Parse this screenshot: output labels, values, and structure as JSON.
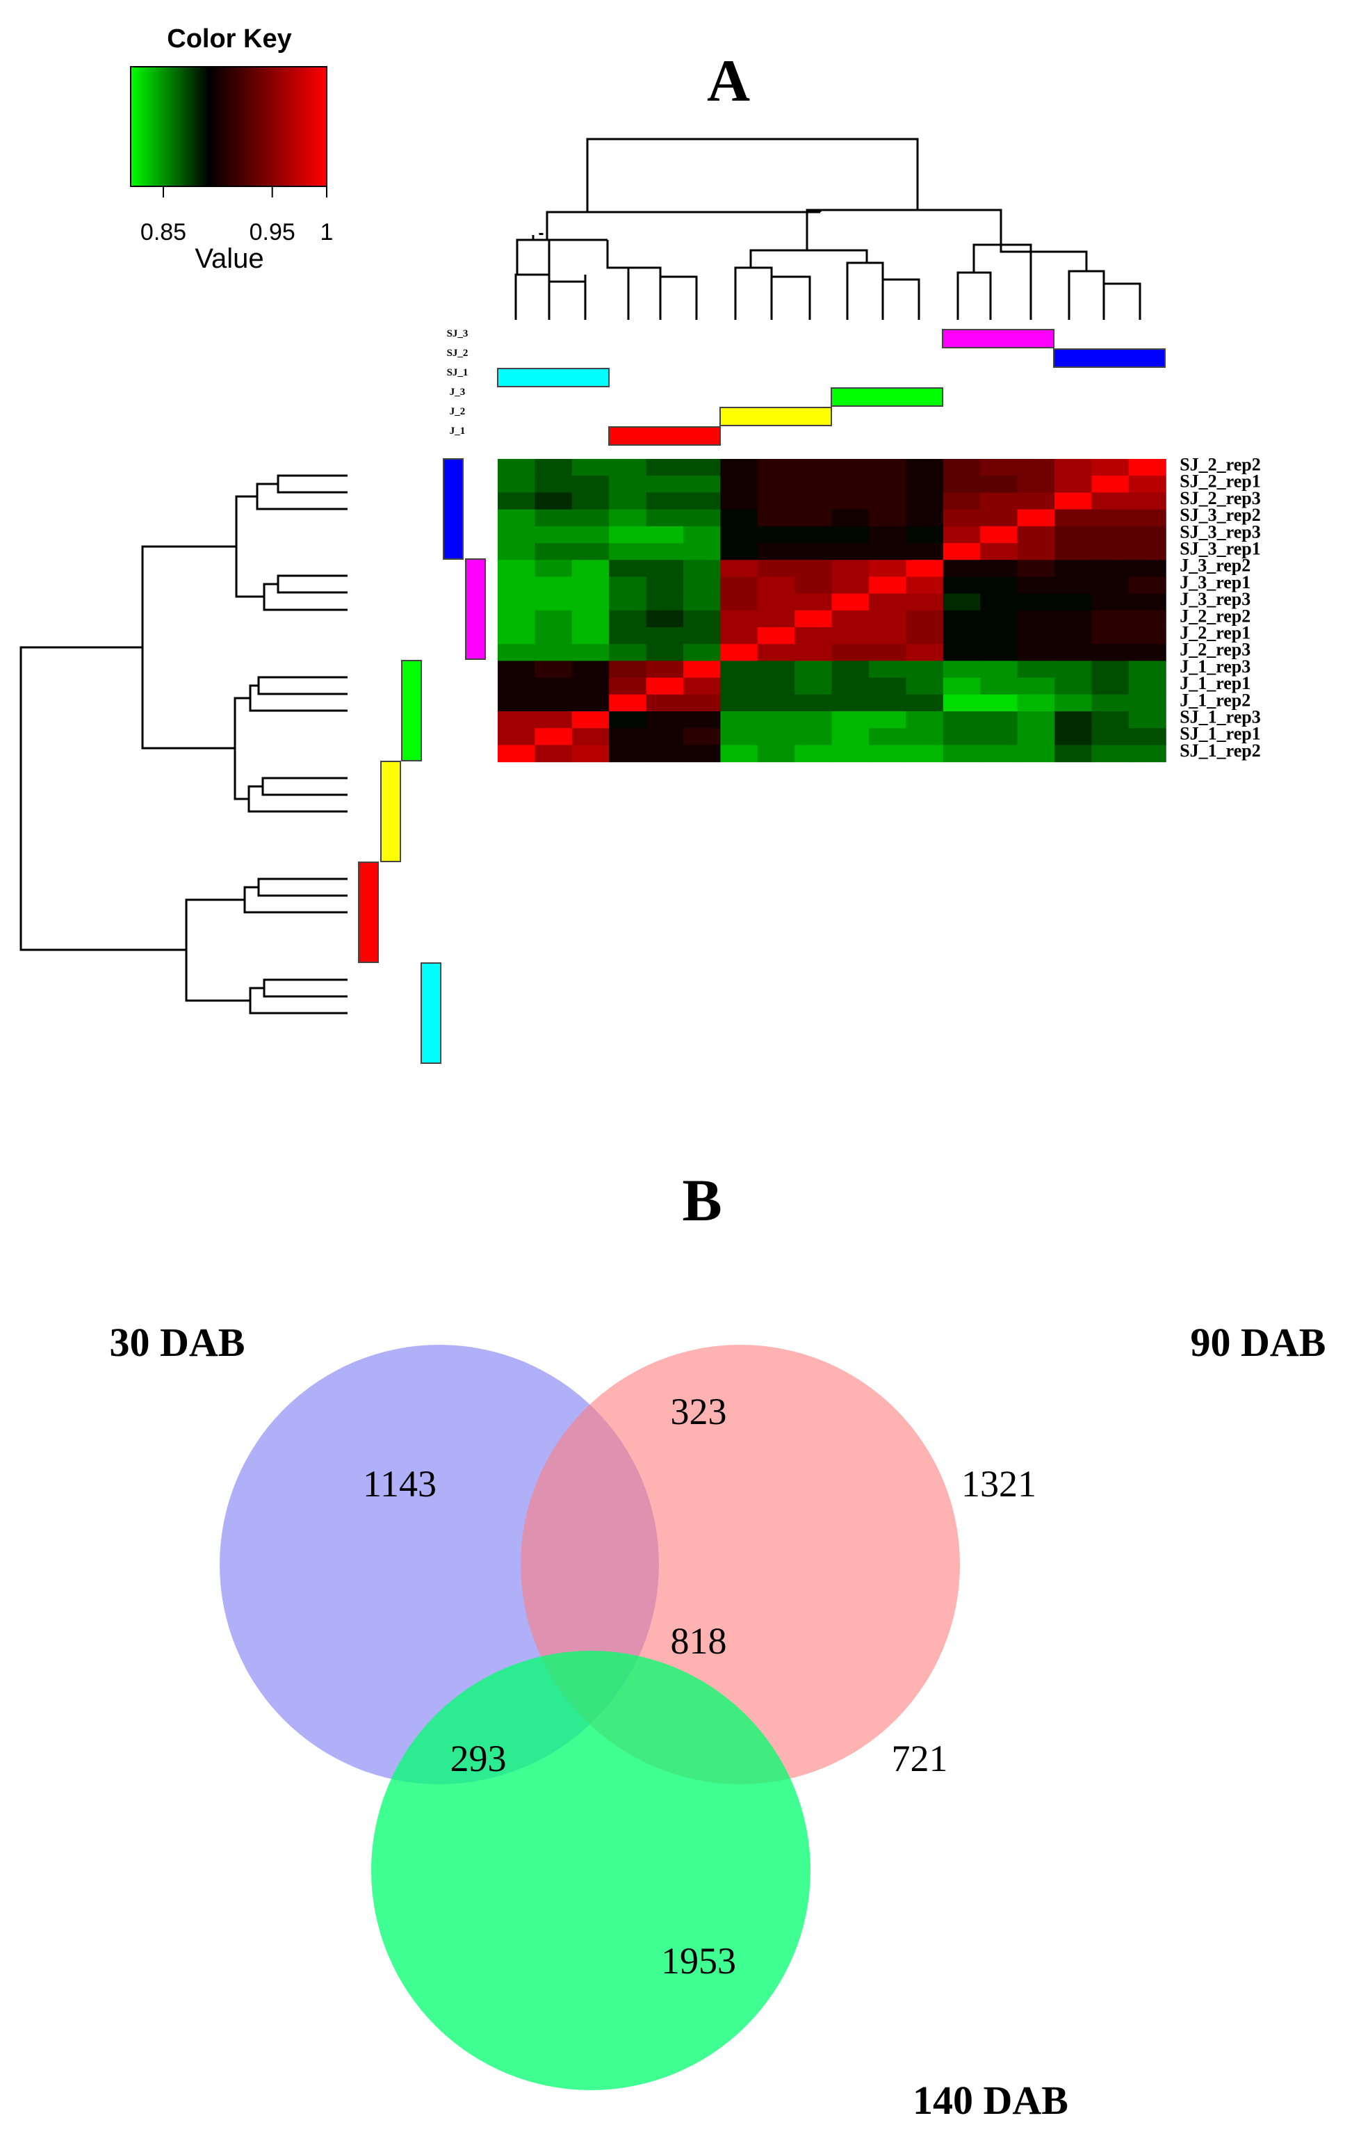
{
  "chart_data": [
    {
      "type": "heatmap",
      "title": "A",
      "color_key": {
        "title": "Color Key",
        "label": "Value",
        "ticks": [
          "0.85",
          "0.95",
          "1"
        ],
        "range": [
          0.82,
          1.0
        ],
        "low_color": "#00ff00",
        "mid_color": "#000000",
        "high_color": "#ff0000"
      },
      "rows": [
        "SJ_2_rep2",
        "SJ_2_rep1",
        "SJ_2_rep3",
        "SJ_3_rep2",
        "SJ_3_rep3",
        "SJ_3_rep1",
        "J_3_rep2",
        "J_3_rep1",
        "J_3_rep3",
        "J_2_rep2",
        "J_2_rep1",
        "J_2_rep3",
        "J_1_rep3",
        "J_1_rep1",
        "J_1_rep2",
        "SJ_1_rep3",
        "SJ_1_rep1",
        "SJ_1_rep2"
      ],
      "group_labels": [
        "SJ_3",
        "SJ_2",
        "SJ_1",
        "J_3",
        "J_2",
        "J_1"
      ],
      "groups": [
        {
          "name": "SJ_2",
          "color": "#0000ff"
        },
        {
          "name": "SJ_3",
          "color": "#ff00ff"
        },
        {
          "name": "J_3",
          "color": "#00ff00"
        },
        {
          "name": "J_2",
          "color": "#ffff00"
        },
        {
          "name": "J_1",
          "color": "#ff0000"
        },
        {
          "name": "SJ_1",
          "color": "#00ffff"
        }
      ],
      "column_groups_left_to_right": [
        "SJ_1",
        "J_1",
        "J_2",
        "J_3",
        "SJ_3",
        "SJ_2"
      ],
      "matrix": [
        [
          0.86,
          0.87,
          0.86,
          0.86,
          0.87,
          0.87,
          0.9,
          0.91,
          0.91,
          0.91,
          0.91,
          0.9,
          0.93,
          0.94,
          0.94,
          0.96,
          0.97,
          1.0
        ],
        [
          0.86,
          0.87,
          0.87,
          0.86,
          0.86,
          0.86,
          0.9,
          0.91,
          0.91,
          0.91,
          0.91,
          0.9,
          0.93,
          0.93,
          0.94,
          0.96,
          1.0,
          0.97
        ],
        [
          0.87,
          0.88,
          0.87,
          0.86,
          0.87,
          0.87,
          0.9,
          0.91,
          0.91,
          0.91,
          0.91,
          0.9,
          0.94,
          0.95,
          0.95,
          1.0,
          0.96,
          0.96
        ],
        [
          0.85,
          0.86,
          0.86,
          0.85,
          0.86,
          0.86,
          0.89,
          0.91,
          0.91,
          0.9,
          0.91,
          0.9,
          0.95,
          0.95,
          1.0,
          0.94,
          0.94,
          0.94
        ],
        [
          0.85,
          0.85,
          0.85,
          0.84,
          0.84,
          0.85,
          0.89,
          0.89,
          0.89,
          0.89,
          0.9,
          0.89,
          0.96,
          1.0,
          0.95,
          0.93,
          0.93,
          0.93
        ],
        [
          0.85,
          0.86,
          0.86,
          0.85,
          0.85,
          0.85,
          0.89,
          0.9,
          0.9,
          0.9,
          0.9,
          0.9,
          1.0,
          0.96,
          0.95,
          0.93,
          0.93,
          0.93
        ],
        [
          0.84,
          0.85,
          0.84,
          0.87,
          0.87,
          0.86,
          0.96,
          0.95,
          0.95,
          0.96,
          0.97,
          1.0,
          0.9,
          0.9,
          0.91,
          0.9,
          0.9,
          0.9
        ],
        [
          0.84,
          0.84,
          0.84,
          0.86,
          0.87,
          0.86,
          0.95,
          0.96,
          0.95,
          0.96,
          1.0,
          0.97,
          0.89,
          0.89,
          0.9,
          0.9,
          0.9,
          0.91
        ],
        [
          0.84,
          0.84,
          0.84,
          0.86,
          0.87,
          0.86,
          0.95,
          0.96,
          0.96,
          1.0,
          0.96,
          0.96,
          0.88,
          0.89,
          0.89,
          0.89,
          0.9,
          0.9
        ],
        [
          0.84,
          0.85,
          0.84,
          0.87,
          0.88,
          0.87,
          0.96,
          0.96,
          1.0,
          0.96,
          0.96,
          0.95,
          0.89,
          0.89,
          0.9,
          0.9,
          0.91,
          0.91
        ],
        [
          0.84,
          0.85,
          0.84,
          0.87,
          0.87,
          0.87,
          0.96,
          1.0,
          0.96,
          0.96,
          0.96,
          0.95,
          0.89,
          0.89,
          0.9,
          0.9,
          0.91,
          0.91
        ],
        [
          0.85,
          0.85,
          0.85,
          0.86,
          0.87,
          0.86,
          1.0,
          0.96,
          0.96,
          0.95,
          0.95,
          0.96,
          0.89,
          0.89,
          0.9,
          0.9,
          0.9,
          0.9
        ],
        [
          0.9,
          0.91,
          0.9,
          0.94,
          0.95,
          1.0,
          0.87,
          0.87,
          0.86,
          0.87,
          0.86,
          0.86,
          0.85,
          0.85,
          0.86,
          0.86,
          0.87,
          0.86
        ],
        [
          0.9,
          0.9,
          0.9,
          0.95,
          1.0,
          0.96,
          0.87,
          0.87,
          0.86,
          0.87,
          0.87,
          0.86,
          0.84,
          0.85,
          0.85,
          0.86,
          0.87,
          0.86
        ],
        [
          0.9,
          0.9,
          0.9,
          1.0,
          0.95,
          0.95,
          0.87,
          0.87,
          0.87,
          0.87,
          0.87,
          0.87,
          0.83,
          0.83,
          0.84,
          0.85,
          0.86,
          0.86
        ],
        [
          0.96,
          0.96,
          1.0,
          0.89,
          0.9,
          0.9,
          0.85,
          0.85,
          0.85,
          0.84,
          0.84,
          0.85,
          0.86,
          0.86,
          0.85,
          0.88,
          0.87,
          0.86
        ],
        [
          0.96,
          1.0,
          0.96,
          0.9,
          0.9,
          0.91,
          0.85,
          0.85,
          0.85,
          0.84,
          0.85,
          0.85,
          0.86,
          0.86,
          0.85,
          0.88,
          0.87,
          0.87
        ],
        [
          1.0,
          0.96,
          0.97,
          0.9,
          0.9,
          0.9,
          0.84,
          0.85,
          0.84,
          0.84,
          0.84,
          0.84,
          0.85,
          0.85,
          0.85,
          0.87,
          0.86,
          0.86
        ]
      ]
    },
    {
      "type": "venn",
      "title": "B",
      "sets": [
        {
          "name": "30 DAB",
          "color": "#7b7bf5"
        },
        {
          "name": "90 DAB",
          "color": "#ff7e7e"
        },
        {
          "name": "140 DAB",
          "color": "#00ff6e"
        }
      ],
      "regions": {
        "only_30": 1143,
        "only_90": 1321,
        "only_140": 1953,
        "30_90": 323,
        "30_140": 293,
        "90_140": 721,
        "all": 818
      }
    }
  ]
}
